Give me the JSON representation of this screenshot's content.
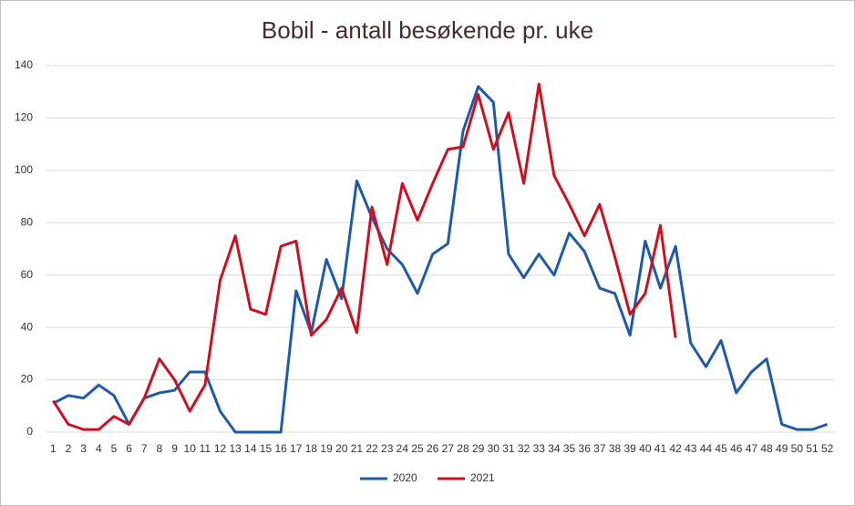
{
  "chart_data": {
    "type": "line",
    "title": "Bobil - antall besøkende pr. uke",
    "categories": [
      "1",
      "2",
      "3",
      "4",
      "5",
      "6",
      "7",
      "8",
      "9",
      "10",
      "11",
      "12",
      "13",
      "14",
      "15",
      "16",
      "17",
      "18",
      "19",
      "20",
      "21",
      "22",
      "23",
      "24",
      "25",
      "26",
      "27",
      "28",
      "29",
      "30",
      "31",
      "32",
      "33",
      "34",
      "35",
      "36",
      "37",
      "38",
      "39",
      "40",
      "41",
      "42",
      "43",
      "44",
      "45",
      "46",
      "47",
      "48",
      "49",
      "50",
      "51",
      "52"
    ],
    "series": [
      {
        "name": "2020",
        "color": "#1f5aa8",
        "values": [
          11,
          14,
          13,
          18,
          14,
          3,
          13,
          15,
          16,
          23,
          23,
          8,
          0,
          0,
          0,
          0,
          54,
          38,
          66,
          51,
          96,
          82,
          70,
          64,
          53,
          68,
          72,
          115,
          132,
          126,
          68,
          59,
          68,
          60,
          76,
          69,
          55,
          53,
          37,
          73,
          55,
          71,
          34,
          25,
          35,
          15,
          23,
          28,
          3,
          1,
          1,
          3
        ]
      },
      {
        "name": "2021",
        "color": "#cc1020",
        "values": [
          12,
          3,
          1,
          1,
          6,
          3,
          13,
          28,
          20,
          8,
          18,
          58,
          75,
          47,
          45,
          71,
          73,
          37,
          43,
          55,
          38,
          86,
          64,
          95,
          81,
          95,
          108,
          109,
          129,
          108,
          122,
          95,
          133,
          98,
          87,
          75,
          87,
          67,
          45,
          53,
          79,
          36,
          null,
          null,
          null,
          null,
          null,
          null,
          null,
          null,
          null,
          null
        ]
      }
    ],
    "ylim": [
      0,
      140
    ],
    "yticks": [
      0,
      20,
      40,
      60,
      80,
      100,
      120,
      140
    ],
    "grid": true,
    "legend": "bottom"
  }
}
